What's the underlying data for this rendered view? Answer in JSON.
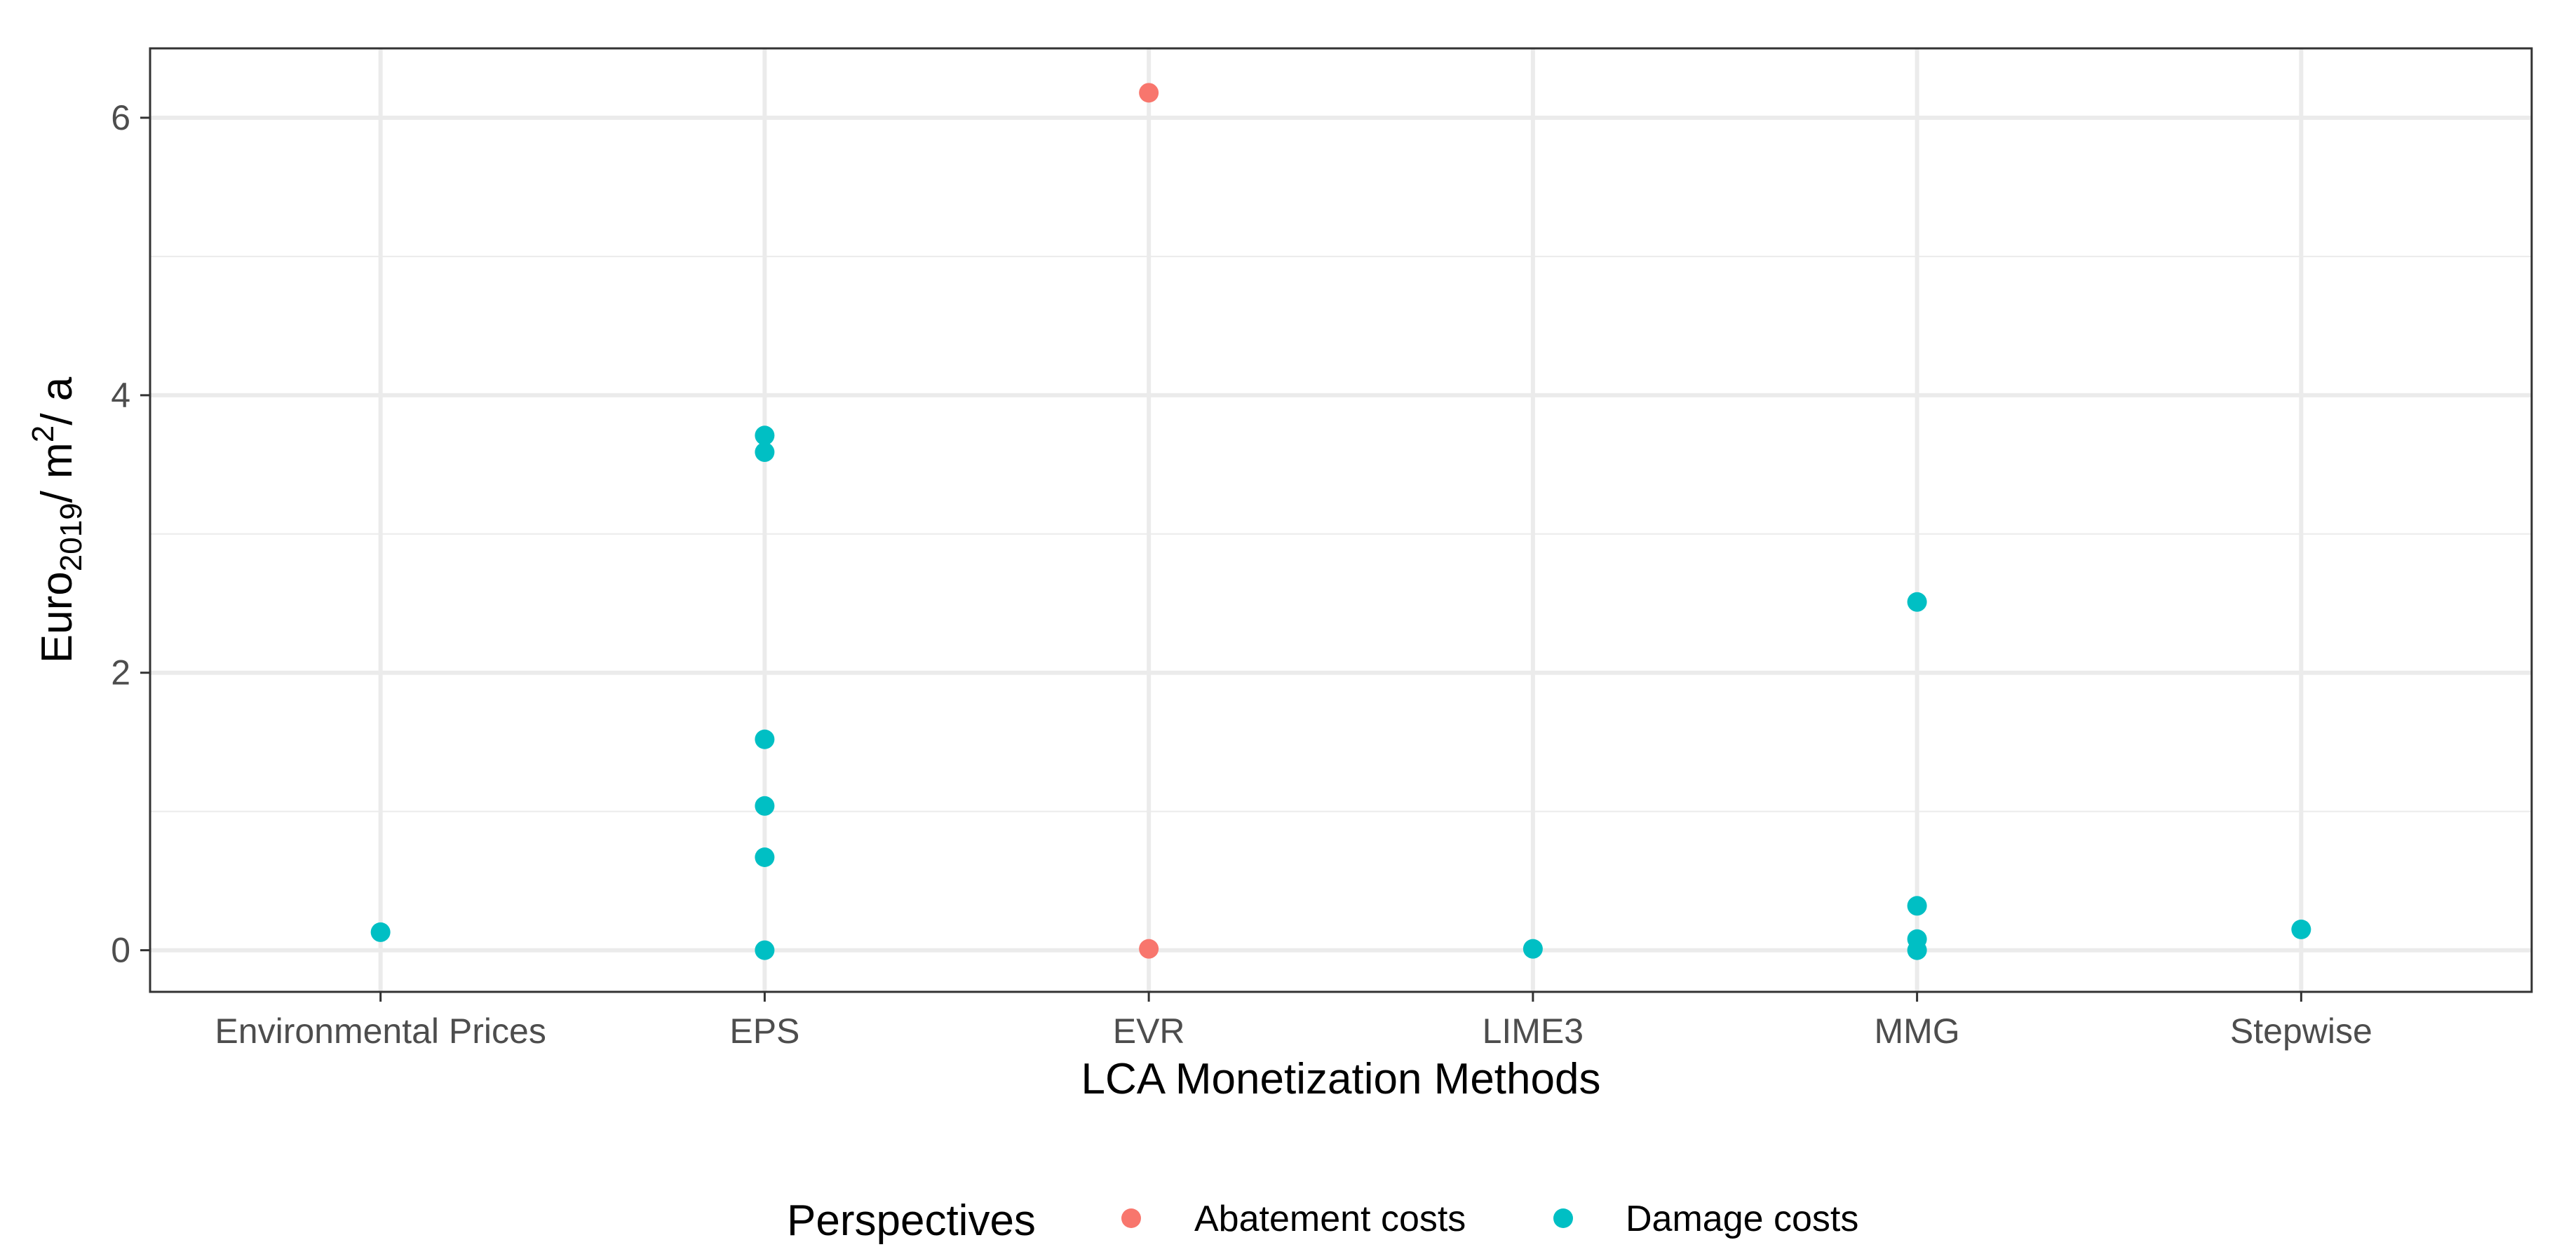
{
  "chart_data": {
    "type": "scatter",
    "title": "",
    "xlabel": "LCA Monetization Methods",
    "ylabel": {
      "base": "Euro",
      "sub": "2019",
      "mid": "/ m",
      "sup": "2",
      "tail": "/ a"
    },
    "categories": [
      "Environmental Prices",
      "EPS",
      "EVR",
      "LIME3",
      "MMG",
      "Stepwise"
    ],
    "ylim": [
      -0.3,
      6.5
    ],
    "yticks": [
      0,
      2,
      4,
      6
    ],
    "yticks_minor": [
      1,
      3,
      5
    ],
    "grid": true,
    "legend": {
      "title": "Perspectives",
      "position": "bottom"
    },
    "series": [
      {
        "name": "Abatement costs",
        "color": "#F8766D",
        "points": [
          {
            "x": "EVR",
            "y": 6.18
          },
          {
            "x": "EVR",
            "y": 0.01
          }
        ]
      },
      {
        "name": "Damage costs",
        "color": "#00BFC4",
        "points": [
          {
            "x": "Environmental Prices",
            "y": 0.13
          },
          {
            "x": "EPS",
            "y": 3.71
          },
          {
            "x": "EPS",
            "y": 3.59
          },
          {
            "x": "EPS",
            "y": 1.52
          },
          {
            "x": "EPS",
            "y": 1.04
          },
          {
            "x": "EPS",
            "y": 0.67
          },
          {
            "x": "EPS",
            "y": 0.0
          },
          {
            "x": "LIME3",
            "y": 0.01
          },
          {
            "x": "MMG",
            "y": 2.51
          },
          {
            "x": "MMG",
            "y": 0.32
          },
          {
            "x": "MMG",
            "y": 0.08
          },
          {
            "x": "MMG",
            "y": 0.0
          },
          {
            "x": "Stepwise",
            "y": 0.15
          }
        ]
      }
    ]
  }
}
